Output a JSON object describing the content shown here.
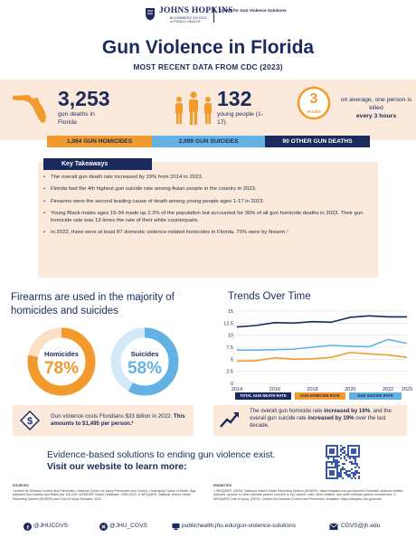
{
  "header": {
    "org_name": "JOHNS HOPKINS",
    "school": "BLOOMBERG SCHOOL of PUBLIC HEALTH",
    "center": "Center for Gun Violence Solutions"
  },
  "title": "Gun Violence in Florida",
  "subtitle": "MOST RECENT DATA FROM CDC (2023)",
  "stats": {
    "deaths_value": "3,253",
    "deaths_label": "gun deaths in Florida",
    "young_value": "132",
    "young_label": "young people (1-17)",
    "clock_number": "3",
    "clock_unit": "HOURS",
    "killed_line1": "on average, one person is killed",
    "killed_bold": "every 3 hours"
  },
  "categories": {
    "homicides": "1,064 GUN HOMICIDES",
    "suicides": "2,099 GUN SUICIDES",
    "other": "90 OTHER GUN DEATHS"
  },
  "takeaways": {
    "label": "Key Takeaways",
    "items": [
      "The overall gun death rate increased by 19% from 2014 to 2023.",
      "Florida had the 4th highest gun suicide rate among Asian people in the country in 2023.",
      "Firearms were the second leading cause of death among young people ages 1-17 in 2023.",
      "Young Black males ages 15-34 made up 2.3% of the population but accounted for 36% of all gun homicide deaths in 2023. Their gun homicide rate was 13 times the rate of their white counterparts.",
      "In 2022, there were at least 87 domestic violence-related homicides in Florida. 70% were by firearm.¹"
    ]
  },
  "firearms": {
    "title": "Firearms are used in the majority of homicides and suicides",
    "homicides_label": "Homicides",
    "homicides_value": "78%",
    "homicides_fraction": 0.78,
    "suicides_label": "Suicides",
    "suicides_value": "58%",
    "suicides_fraction": 0.58,
    "colors": {
      "homicides": "#f29a2e",
      "suicides": "#64b1e3"
    }
  },
  "trends": {
    "title": "Trends Over Time",
    "rate_label": "RATE PER 100,000"
  },
  "chart_data": {
    "type": "line",
    "title": "Trends Over Time",
    "ylabel": "RATE PER 100,000",
    "x": [
      2014,
      2015,
      2016,
      2017,
      2018,
      2019,
      2020,
      2021,
      2022,
      2023
    ],
    "x_ticks": [
      "2014",
      "2016",
      "2018",
      "2020",
      "2022",
      "2023"
    ],
    "ylim": [
      0,
      15
    ],
    "y_ticks": [
      0,
      2.5,
      5,
      7.5,
      10,
      12.5,
      15
    ],
    "y_tick_labels": [
      "0",
      "2.5",
      "5",
      "7.5",
      "10",
      "12.5",
      "15"
    ],
    "grid": true,
    "legend": "bottom",
    "series": [
      {
        "name": "TOTAL GUN DEATH RATE",
        "color": "#1b2a5c",
        "values": [
          11.7,
          12.0,
          12.6,
          12.5,
          12.8,
          12.7,
          13.7,
          14.0,
          13.8,
          13.8
        ]
      },
      {
        "name": "GUN HOMICIDE RATE",
        "color": "#f29a2e",
        "values": [
          4.6,
          4.7,
          5.3,
          5.0,
          5.1,
          5.4,
          6.4,
          6.1,
          5.9,
          5.4
        ]
      },
      {
        "name": "GUN SUICIDE RATE",
        "color": "#64b1e3",
        "values": [
          6.9,
          6.9,
          7.0,
          7.1,
          7.5,
          7.9,
          7.7,
          7.6,
          9.1,
          8.3
        ]
      }
    ]
  },
  "cost": {
    "text": "Gun violence costs Floridians $33 billion in 2022.",
    "bold": "This amounts to $1,495 per person.²"
  },
  "trend_summary": {
    "pre": "The overall gun homicide rate",
    "bold1": "increased by 16%",
    "mid": ", and the overall gun suicide rate",
    "bold2": "increased by 19%",
    "post": "over the last decade."
  },
  "solutions": {
    "line1": "Evidence-based solutions to ending gun violence exist.",
    "line2": "Visit our website to learn more:"
  },
  "sources": {
    "label": "SOURCES",
    "text": "Centers for Disease Control and Prevention, National Center for Injury Prevention and Control. Underlying Cause of Death. Age-adjusted Gun Deaths and Rates per 100,000. WONDER Online Database. 1999-2023. & WISQARS. National Violent Death Reporting System (NVDRS) and Cost of Injury Modules. 2022"
  },
  "endnotes": {
    "label": "ENDNOTES",
    "text": "1 WISQARS. (2022). National Violent Death Reporting System (NVDRS). https://wisqars.cdc.gov/reports/ Domestic violence-related includes: spouse or other intimate partner (current or ex), parent, child, other relative, and other intimate partner involvement. 2 WISQARS Cost of Injury. (2022). Centers for Disease Control and Prevention. Available: https://wisqars.cdc.gov/cost/"
  },
  "footer": {
    "facebook": "@JHUCGVS",
    "x": "@JHU_CGVS",
    "website": "publichealth.jhu.edu/gun-violence-solutions",
    "email": "CGVS@jh.edu"
  }
}
